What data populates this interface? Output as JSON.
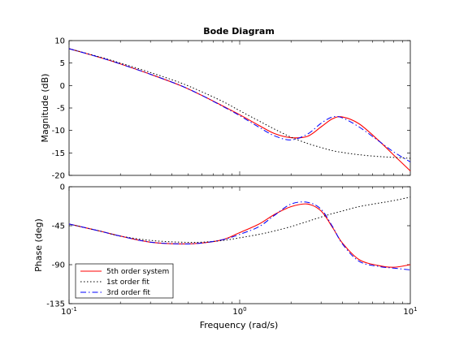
{
  "chart_data": {
    "type": "line",
    "title": "Bode Diagram",
    "xlabel": "Frequency  (rad/s)",
    "x_scale": "log",
    "xlim": [
      0.1,
      10
    ],
    "x_ticks": [
      {
        "value": 0.1,
        "base": "10",
        "exp": "-1"
      },
      {
        "value": 1,
        "base": "10",
        "exp": "0"
      },
      {
        "value": 10,
        "base": "10",
        "exp": "1"
      }
    ],
    "colors": {
      "5th order system": "#ff0000",
      "1st order fit": "#000000",
      "3rd order fit": "#0000ff"
    },
    "legend": {
      "placement": "lower-left of phase panel",
      "entries": [
        "5th order system",
        "1st order fit",
        "3rd order fit"
      ]
    },
    "panels": [
      {
        "name": "magnitude",
        "ylabel": "Magnitude (dB)",
        "ylim": [
          -20,
          10
        ],
        "y_ticks": [
          10,
          5,
          0,
          -5,
          -10,
          -15,
          -20
        ],
        "series": [
          {
            "name": "5th order system",
            "x": [
              0.1,
              0.15,
              0.2,
              0.3,
              0.45,
              0.6,
              0.8,
              1.0,
              1.3,
              1.6,
              2.0,
              2.5,
              3.0,
              3.5,
              4.0,
              5.0,
              6.5,
              8.0,
              10
            ],
            "y": [
              8.2,
              6.3,
              4.8,
              2.5,
              0.0,
              -2.2,
              -4.6,
              -6.5,
              -8.9,
              -10.7,
              -11.6,
              -11.3,
              -9.2,
              -7.4,
              -7.0,
              -8.5,
              -12.2,
              -15.5,
              -19.0
            ]
          },
          {
            "name": "1st order fit",
            "x": [
              0.1,
              0.15,
              0.2,
              0.3,
              0.45,
              0.6,
              0.8,
              1.0,
              1.3,
              1.6,
              2.0,
              2.5,
              3.0,
              3.5,
              4.0,
              5.0,
              6.5,
              8.0,
              10
            ],
            "y": [
              8.2,
              6.4,
              5.0,
              2.9,
              0.6,
              -1.4,
              -3.6,
              -5.6,
              -7.9,
              -9.7,
              -11.5,
              -12.9,
              -13.8,
              -14.5,
              -14.9,
              -15.4,
              -15.8,
              -16.0,
              -16.2
            ]
          },
          {
            "name": "3rd order fit",
            "x": [
              0.1,
              0.15,
              0.2,
              0.3,
              0.45,
              0.6,
              0.8,
              1.0,
              1.3,
              1.6,
              2.0,
              2.5,
              3.0,
              3.5,
              4.0,
              5.0,
              6.5,
              8.0,
              10
            ],
            "y": [
              8.2,
              6.3,
              4.8,
              2.5,
              0.0,
              -2.2,
              -4.7,
              -6.7,
              -9.3,
              -11.2,
              -12.1,
              -10.8,
              -8.4,
              -7.0,
              -7.2,
              -9.2,
              -12.3,
              -14.8,
              -17.0
            ]
          }
        ]
      },
      {
        "name": "phase",
        "ylabel": "Phase (deg)",
        "ylim": [
          -135,
          0
        ],
        "y_ticks": [
          0,
          -45,
          -90,
          -135
        ],
        "series": [
          {
            "name": "5th order system",
            "x": [
              0.1,
              0.15,
              0.2,
              0.3,
              0.45,
              0.6,
              0.8,
              1.0,
              1.3,
              1.6,
              2.0,
              2.5,
              3.0,
              3.5,
              4.0,
              5.0,
              6.5,
              8.0,
              10
            ],
            "y": [
              -43,
              -51,
              -57,
              -64,
              -66,
              -65,
              -61,
              -53,
              -43,
              -32,
              -23,
              -20,
              -28,
              -47,
              -65,
              -84,
              -91,
              -93,
              -90
            ]
          },
          {
            "name": "1st order fit",
            "x": [
              0.1,
              0.15,
              0.2,
              0.3,
              0.45,
              0.6,
              0.8,
              1.0,
              1.3,
              1.6,
              2.0,
              2.5,
              3.0,
              3.5,
              4.0,
              5.0,
              6.5,
              8.0,
              10
            ],
            "y": [
              -43,
              -51,
              -57,
              -62,
              -64,
              -64,
              -62,
              -59,
              -55,
              -51,
              -46,
              -40,
              -35,
              -31,
              -28,
              -23,
              -19,
              -16,
              -12
            ]
          },
          {
            "name": "3rd order fit",
            "x": [
              0.1,
              0.15,
              0.2,
              0.3,
              0.45,
              0.6,
              0.8,
              1.0,
              1.3,
              1.6,
              2.0,
              2.5,
              3.0,
              3.5,
              4.0,
              5.0,
              6.5,
              8.0,
              10
            ],
            "y": [
              -43,
              -51,
              -57,
              -64,
              -66,
              -65,
              -61,
              -55,
              -46,
              -33,
              -20,
              -18,
              -26,
              -46,
              -66,
              -86,
              -92,
              -94,
              -96
            ]
          }
        ]
      }
    ]
  }
}
